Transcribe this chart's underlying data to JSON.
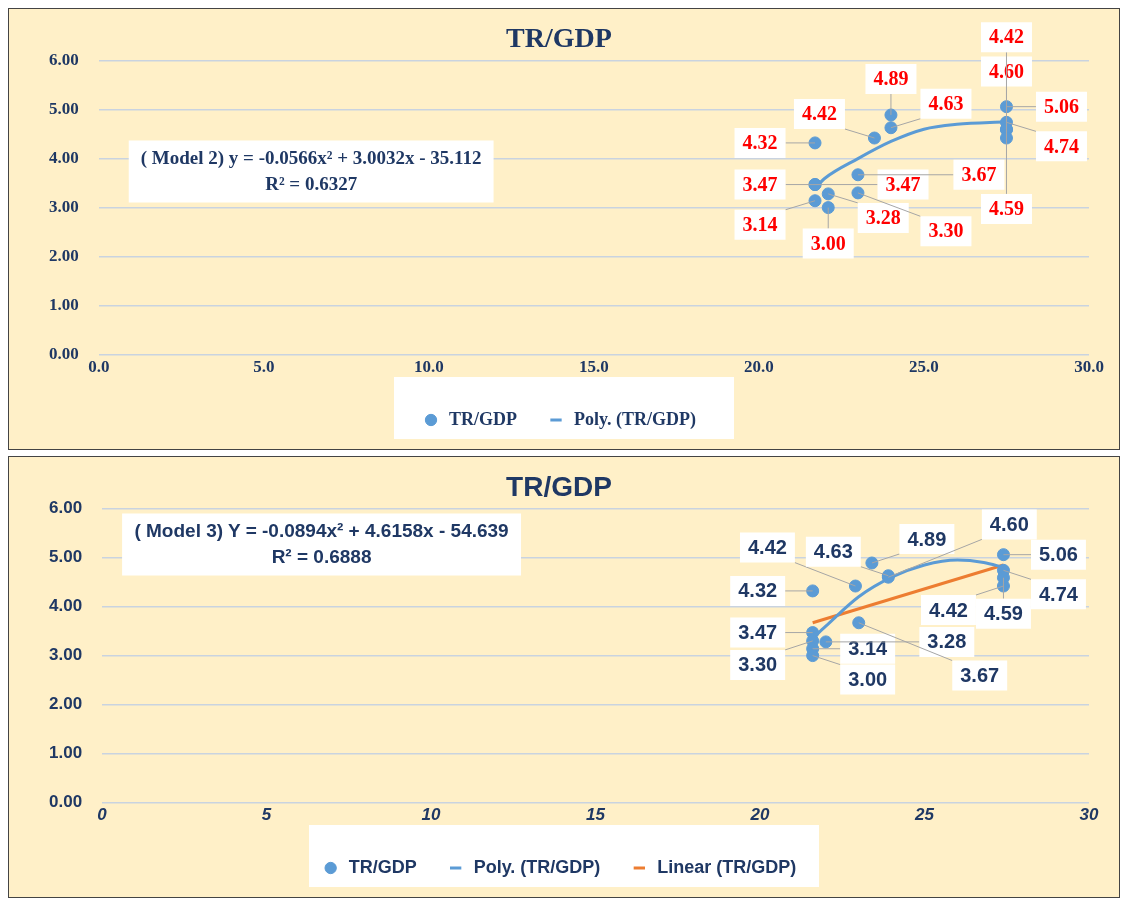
{
  "chart_data": [
    {
      "type": "scatter",
      "title": "TR/GDP",
      "annotations": [
        "( Model 2) y = -0.0566x² + 3.0032x - 35.112",
        "R² = 0.6327"
      ],
      "xlim": [
        0,
        30
      ],
      "xticks": [
        {
          "value": 0,
          "label": "0.0"
        },
        {
          "value": 5,
          "label": "5.0"
        },
        {
          "value": 10,
          "label": "10.0"
        },
        {
          "value": 15,
          "label": "15.0"
        },
        {
          "value": 20,
          "label": "20.0"
        },
        {
          "value": 25,
          "label": "25.0"
        },
        {
          "value": 30,
          "label": "30.0"
        }
      ],
      "ylim": [
        0,
        6
      ],
      "yticks": [
        {
          "value": 0,
          "label": "0.00"
        },
        {
          "value": 1,
          "label": "1.00"
        },
        {
          "value": 2,
          "label": "2.00"
        },
        {
          "value": 3,
          "label": "3.00"
        },
        {
          "value": 4,
          "label": "4.00"
        },
        {
          "value": 5,
          "label": "5.00"
        },
        {
          "value": 6,
          "label": "6.00"
        }
      ],
      "grid": "y",
      "legend": "bottom",
      "series": [
        {
          "name": "TR/GDP",
          "marker": "circle",
          "color": "#5b9bd5",
          "x": [
            21.7,
            21.7,
            21.7,
            21.7,
            22.1,
            22.1,
            23.0,
            23.0,
            23.5,
            24.0,
            24.0,
            27.5,
            27.5,
            27.5,
            27.5,
            27.5
          ],
          "values": [
            4.32,
            3.47,
            3.47,
            3.14,
            3.28,
            3.0,
            3.67,
            3.3,
            4.42,
            4.63,
            4.89,
            5.06,
            4.74,
            4.6,
            4.59,
            4.42
          ],
          "value_labels": [
            "4.32",
            "3.47",
            "3.47",
            "3.14",
            "3.28",
            "3.00",
            "3.67",
            "3.30",
            "4.42",
            "4.63",
            "4.89",
            "5.06",
            "4.74",
            "4.60",
            "4.59",
            "4.42"
          ]
        },
        {
          "name": "Poly. (TR/GDP)",
          "type": "line",
          "marker": "none",
          "color": "#5b9bd5",
          "x": [
            21.7,
            22,
            23,
            24,
            25,
            26,
            27.5
          ],
          "values": [
            3.4,
            3.6,
            4.0,
            4.35,
            4.6,
            4.7,
            4.75
          ]
        }
      ]
    },
    {
      "type": "scatter",
      "title": "TR/GDP",
      "annotations": [
        "( Model 3) Y = -0.0894x² + 4.6158x - 54.639",
        "R² = 0.6888"
      ],
      "xlim": [
        0,
        30
      ],
      "xticks": [
        0,
        5,
        10,
        15,
        20,
        25,
        30
      ],
      "ylim": [
        0,
        6
      ],
      "yticks": [
        {
          "value": 0,
          "label": "0.00"
        },
        {
          "value": 1,
          "label": "1.00"
        },
        {
          "value": 2,
          "label": "2.00"
        },
        {
          "value": 3,
          "label": "3.00"
        },
        {
          "value": 4,
          "label": "4.00"
        },
        {
          "value": 5,
          "label": "5.00"
        },
        {
          "value": 6,
          "label": "6.00"
        }
      ],
      "grid": "y",
      "legend": "bottom",
      "series": [
        {
          "name": "TR/GDP",
          "marker": "circle",
          "color": "#5b9bd5",
          "x": [
            21.6,
            21.6,
            21.6,
            21.6,
            21.6,
            22.0,
            23.0,
            22.9,
            23.4,
            23.9,
            23.9,
            27.4,
            27.4,
            27.4,
            27.4
          ],
          "values": [
            4.32,
            3.47,
            3.3,
            3.14,
            3.0,
            3.28,
            3.67,
            4.42,
            4.89,
            4.63,
            4.6,
            5.06,
            4.74,
            4.42,
            4.59
          ],
          "value_labels": [
            "4.32",
            "3.47",
            "3.30",
            "3.14",
            "3.00",
            "3.28",
            "3.67",
            "4.42",
            "4.89",
            "4.63",
            "4.60",
            "5.06",
            "4.74",
            "4.42",
            "4.59"
          ]
        },
        {
          "name": "Poly. (TR/GDP)",
          "type": "line",
          "marker": "none",
          "color": "#5b9bd5",
          "x": [
            21.6,
            22,
            23,
            24,
            25,
            26,
            26.8,
            27.4
          ],
          "values": [
            3.35,
            3.6,
            4.2,
            4.6,
            4.85,
            4.95,
            4.9,
            4.8
          ]
        },
        {
          "name": "Linear (TR/GDP)",
          "type": "line",
          "marker": "none",
          "color": "#ed7d31",
          "x": [
            21.6,
            27.4
          ],
          "values": [
            3.67,
            4.85
          ]
        }
      ]
    }
  ]
}
